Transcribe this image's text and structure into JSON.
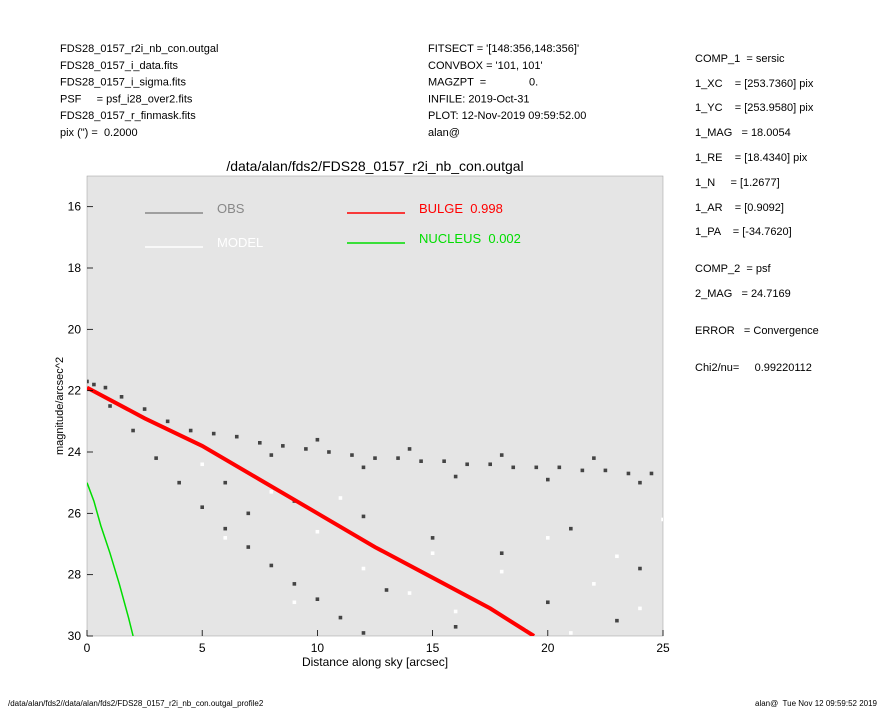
{
  "header": {
    "left": [
      "FDS28_0157_r2i_nb_con.outgal",
      "FDS28_0157_i_data.fits",
      "FDS28_0157_i_sigma.fits",
      "PSF     = psf_i28_over2.fits",
      "FDS28_0157_r_finmask.fits",
      "pix (\") =  0.2000"
    ],
    "middle": [
      "FITSECT = '[148:356,148:356]'",
      "CONVBOX = '101, 101'",
      "MAGZPT  =              0.",
      "INFILE: 2019-Oct-31",
      "PLOT: 12-Nov-2019 09:59:52.00",
      "alan@"
    ],
    "right": [
      "COMP_1  = sersic",
      "1_XC    = [253.7360] pix",
      "1_YC    = [253.9580] pix",
      "1_MAG   = 18.0054",
      "1_RE    = [18.4340] pix",
      "1_N     = [1.2677]",
      "1_AR    = [0.9092]",
      "1_PA    = [-34.7620]",
      "COMP_2  = psf",
      "2_MAG   = 24.7169",
      "ERROR   = Convergence",
      "Chi2/nu=     0.99220112"
    ]
  },
  "footer": {
    "left": "/data/alan/fds2//data/alan/fds2/FDS28_0157_r2i_nb_con.outgal_profile2",
    "right": "alan@  Tue Nov 12 09:59:52 2019"
  },
  "chart_data": {
    "type": "scatter",
    "title": "/data/alan/fds2/FDS28_0157_r2i_nb_con.outgal",
    "x_label": "Distance along sky [arcsec]",
    "y_label": "magnitude/arcsec^2",
    "xlim": [
      0,
      25
    ],
    "xticks": [
      0,
      5,
      10,
      15,
      20,
      25
    ],
    "ylim": [
      30,
      15
    ],
    "yticks": [
      16,
      18,
      20,
      22,
      24,
      26,
      28,
      30
    ],
    "background": "#e5e5e5",
    "series": [
      {
        "name": "OBS",
        "color": "#444444",
        "legend_color": "#888888",
        "mode": "markers",
        "x": [
          0,
          0.3,
          0.8,
          1.5,
          2.5,
          3.5,
          4.5,
          5.5,
          6.5,
          7.5,
          8.5,
          9.5,
          10.5,
          11.5,
          12.5,
          13.5,
          14.5,
          15.5,
          16.5,
          17.5,
          18.5,
          19.5,
          20.5,
          21.5,
          22.5,
          23.5,
          24.5,
          8,
          12,
          16,
          20,
          24,
          10,
          14,
          18,
          22,
          1,
          2,
          3,
          4,
          5,
          6,
          7,
          8,
          9,
          10,
          11,
          12,
          6,
          9,
          12,
          15,
          18,
          21,
          24,
          7,
          13,
          20,
          23,
          16
        ],
        "values": [
          21.7,
          21.8,
          21.9,
          22.2,
          22.6,
          23.0,
          23.3,
          23.4,
          23.5,
          23.7,
          23.8,
          23.9,
          24.0,
          24.1,
          24.2,
          24.2,
          24.3,
          24.3,
          24.4,
          24.4,
          24.5,
          24.5,
          24.5,
          24.6,
          24.6,
          24.7,
          24.7,
          24.1,
          24.5,
          24.8,
          24.9,
          25.0,
          23.6,
          23.9,
          24.1,
          24.2,
          22.5,
          23.3,
          24.2,
          25.0,
          25.8,
          26.5,
          27.1,
          27.7,
          28.3,
          28.8,
          29.4,
          29.9,
          25.0,
          25.6,
          26.1,
          26.8,
          27.3,
          26.5,
          27.8,
          26.0,
          28.5,
          28.9,
          29.5,
          29.7
        ]
      },
      {
        "name": "MODEL",
        "color": "#ffffff",
        "legend_color": "#ffffff",
        "mode": "markers",
        "x": [
          5,
          8,
          10,
          12,
          14,
          16,
          18,
          20,
          22,
          24,
          25,
          11,
          15,
          19,
          23,
          21,
          6,
          9
        ],
        "values": [
          24.4,
          25.3,
          26.6,
          27.8,
          28.6,
          29.2,
          27.9,
          26.8,
          28.3,
          29.1,
          26.2,
          25.5,
          27.3,
          29.8,
          27.4,
          29.9,
          26.8,
          28.9
        ]
      },
      {
        "name": "BULGE  0.998",
        "color": "#ff0000",
        "legend_color": "#ff0000",
        "mode": "line",
        "x": [
          0,
          2.5,
          5,
          7.5,
          10,
          12.5,
          15,
          17.5,
          19.4
        ],
        "values": [
          21.9,
          22.9,
          23.8,
          24.9,
          26.0,
          27.1,
          28.1,
          29.1,
          30.0
        ]
      },
      {
        "name": "NUCLEUS  0.002",
        "color": "#00dd00",
        "legend_color": "#00dd00",
        "mode": "line",
        "x": [
          0,
          0.3,
          0.6,
          1,
          1.4,
          1.8,
          2
        ],
        "values": [
          25.0,
          25.6,
          26.4,
          27.3,
          28.3,
          29.4,
          30.0
        ]
      }
    ]
  }
}
